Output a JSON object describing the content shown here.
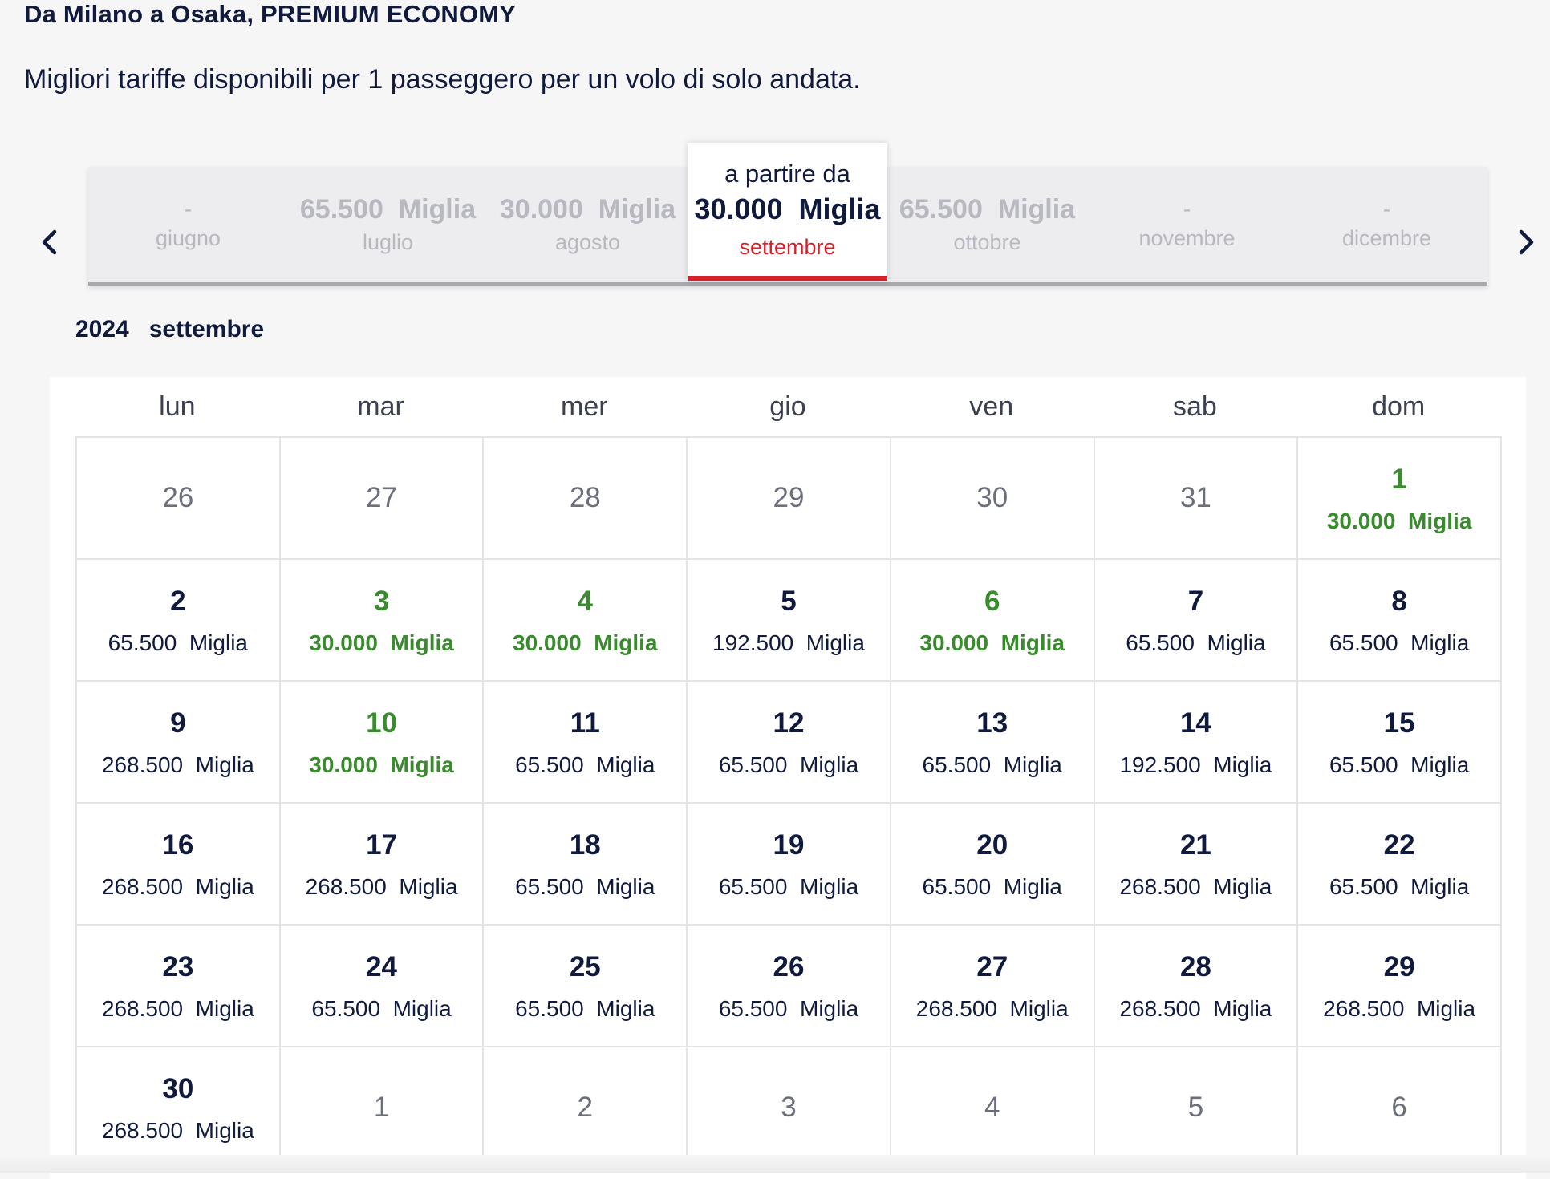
{
  "header": {
    "route_title": "Da Milano a Osaka, PREMIUM ECONOMY",
    "subtitle": "Migliori tariffe disponibili per 1 passeggero per un volo di solo andata."
  },
  "slider": {
    "icons": {
      "prev": "chevron-left-icon",
      "next": "chevron-right-icon"
    },
    "active_from_label": "a partire da",
    "months": [
      {
        "price": "-",
        "name": "giugno"
      },
      {
        "price": "65.500  Miglia",
        "name": "luglio"
      },
      {
        "price": "30.000  Miglia",
        "name": "agosto"
      },
      {
        "price": "30.000  Miglia",
        "name": "settembre"
      },
      {
        "price": "65.500  Miglia",
        "name": "ottobre"
      },
      {
        "price": "-",
        "name": "novembre"
      },
      {
        "price": "-",
        "name": "dicembre"
      }
    ]
  },
  "calendar": {
    "year_month": "2024   settembre",
    "colors": {
      "lowest_fare": "#3a8a2e",
      "active_accent": "#d4202a",
      "text": "#101a3d"
    },
    "weekdays": [
      "lun",
      "mar",
      "mer",
      "gio",
      "ven",
      "sab",
      "dom"
    ],
    "rows": [
      [
        {
          "day": "26"
        },
        {
          "day": "27"
        },
        {
          "day": "28"
        },
        {
          "day": "29"
        },
        {
          "day": "30"
        },
        {
          "day": "31"
        },
        {
          "day": "1",
          "fare": "30.000  Miglia"
        }
      ],
      [
        {
          "day": "2",
          "fare": "65.500  Miglia"
        },
        {
          "day": "3",
          "fare": "30.000  Miglia"
        },
        {
          "day": "4",
          "fare": "30.000  Miglia"
        },
        {
          "day": "5",
          "fare": "192.500  Miglia"
        },
        {
          "day": "6",
          "fare": "30.000  Miglia"
        },
        {
          "day": "7",
          "fare": "65.500  Miglia"
        },
        {
          "day": "8",
          "fare": "65.500  Miglia"
        }
      ],
      [
        {
          "day": "9",
          "fare": "268.500  Miglia"
        },
        {
          "day": "10",
          "fare": "30.000  Miglia"
        },
        {
          "day": "11",
          "fare": "65.500  Miglia"
        },
        {
          "day": "12",
          "fare": "65.500  Miglia"
        },
        {
          "day": "13",
          "fare": "65.500  Miglia"
        },
        {
          "day": "14",
          "fare": "192.500  Miglia"
        },
        {
          "day": "15",
          "fare": "65.500  Miglia"
        }
      ],
      [
        {
          "day": "16",
          "fare": "268.500  Miglia"
        },
        {
          "day": "17",
          "fare": "268.500  Miglia"
        },
        {
          "day": "18",
          "fare": "65.500  Miglia"
        },
        {
          "day": "19",
          "fare": "65.500  Miglia"
        },
        {
          "day": "20",
          "fare": "65.500  Miglia"
        },
        {
          "day": "21",
          "fare": "268.500  Miglia"
        },
        {
          "day": "22",
          "fare": "65.500  Miglia"
        }
      ],
      [
        {
          "day": "23",
          "fare": "268.500  Miglia"
        },
        {
          "day": "24",
          "fare": "65.500  Miglia"
        },
        {
          "day": "25",
          "fare": "65.500  Miglia"
        },
        {
          "day": "26",
          "fare": "65.500  Miglia"
        },
        {
          "day": "27",
          "fare": "268.500  Miglia"
        },
        {
          "day": "28",
          "fare": "268.500  Miglia"
        },
        {
          "day": "29",
          "fare": "268.500  Miglia"
        }
      ],
      [
        {
          "day": "30",
          "fare": "268.500  Miglia"
        },
        {
          "day": "1"
        },
        {
          "day": "2"
        },
        {
          "day": "3"
        },
        {
          "day": "4"
        },
        {
          "day": "5"
        },
        {
          "day": "6"
        }
      ]
    ]
  }
}
